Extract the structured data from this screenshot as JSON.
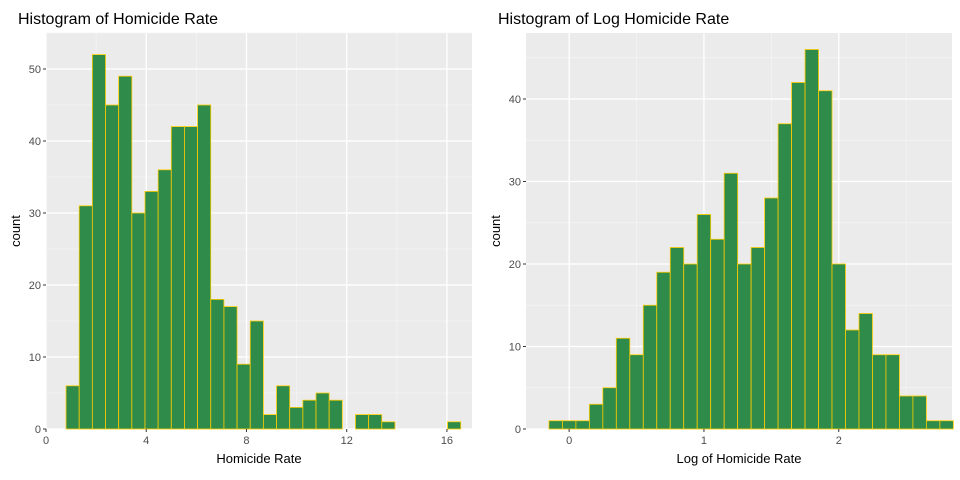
{
  "chart_data": [
    {
      "type": "bar",
      "title": "Histogram of Homicide Rate",
      "xlabel": "Homicide Rate",
      "ylabel": "count",
      "xlim": [
        0,
        17
      ],
      "ylim": [
        0,
        55
      ],
      "x_ticks": [
        0,
        4,
        8,
        12,
        16
      ],
      "y_ticks": [
        0,
        10,
        20,
        30,
        40,
        50
      ],
      "bin_width": 0.525,
      "bin_start": 0.8,
      "values": [
        6,
        31,
        52,
        45,
        49,
        30,
        33,
        36,
        42,
        42,
        45,
        18,
        17,
        9,
        15,
        2,
        6,
        3,
        4,
        5,
        4,
        0,
        2,
        2,
        1,
        0,
        0,
        0,
        0,
        1
      ],
      "fill_color": "#2e8b4a",
      "edge_color": "#ffcc00",
      "grid": true
    },
    {
      "type": "bar",
      "title": "Histogram of Log Homicide Rate",
      "xlabel": "Log of Homicide Rate",
      "ylabel": "count",
      "xlim": [
        -0.32,
        2.84
      ],
      "ylim": [
        0,
        48
      ],
      "x_ticks": [
        0,
        1,
        2
      ],
      "y_ticks": [
        0,
        10,
        20,
        30,
        40
      ],
      "bin_width": 0.1,
      "bin_start": -0.15,
      "values": [
        1,
        1,
        1,
        3,
        5,
        11,
        9,
        15,
        19,
        22,
        20,
        26,
        23,
        31,
        20,
        22,
        28,
        37,
        42,
        46,
        41,
        20,
        12,
        14,
        9,
        9,
        4,
        4,
        1,
        1
      ],
      "fill_color": "#2e8b4a",
      "edge_color": "#ffcc00",
      "grid": true
    }
  ]
}
